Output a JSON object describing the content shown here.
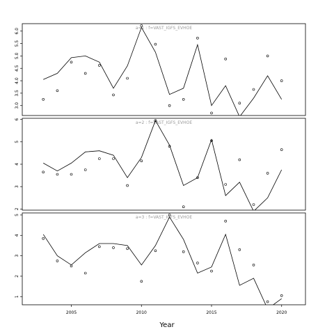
{
  "chart_data": {
    "type": "line",
    "xlabel": "Year",
    "xlim": [
      2001.5,
      2021.7
    ],
    "x_ticks": [
      2005,
      2010,
      2015,
      2020
    ],
    "x": [
      2003,
      2004,
      2005,
      2006,
      2007,
      2008,
      2009,
      2010,
      2011,
      2012,
      2013,
      2014,
      2015,
      2016,
      2017,
      2018,
      2019,
      2020
    ],
    "panels": [
      {
        "title": "a=1 : f=VAST_IGFS_EVHOE",
        "ylim": [
          2.6,
          6.3
        ],
        "y_ticks": [
          "3.0",
          "3.5",
          "4.0",
          "4.5",
          "5.0",
          "5.5",
          "6.0"
        ],
        "line": [
          4.05,
          4.3,
          4.93,
          5.0,
          4.75,
          3.7,
          4.6,
          6.15,
          5.15,
          3.45,
          3.7,
          5.45,
          3.0,
          3.8,
          2.55,
          3.3,
          4.2,
          3.25
        ],
        "points": [
          3.25,
          3.6,
          4.75,
          4.3,
          4.62,
          3.43,
          4.1,
          6.22,
          5.47,
          3.0,
          3.25,
          5.72,
          2.7,
          4.88,
          3.1,
          3.65,
          5.0,
          4.0
        ]
      },
      {
        "title": "a=2 : f=VAST_IGFS_EVHOE",
        "ylim": [
          1.95,
          6.05
        ],
        "y_ticks": [
          "2",
          "3",
          "4",
          "5",
          "6"
        ],
        "line": [
          4.05,
          3.7,
          4.05,
          4.55,
          4.6,
          4.4,
          3.4,
          4.3,
          5.95,
          4.85,
          3.05,
          3.4,
          5.1,
          2.6,
          3.2,
          1.9,
          2.5,
          3.75
        ],
        "points": [
          3.65,
          3.55,
          3.55,
          3.75,
          4.25,
          4.25,
          3.05,
          4.15,
          5.95,
          4.8,
          2.1,
          3.4,
          5.05,
          3.1,
          4.2,
          2.2,
          3.6,
          4.65
        ]
      },
      {
        "title": "a=3 : f=VAST_IGFS_EVHOE",
        "ylim": [
          0.6,
          5.1
        ],
        "y_ticks": [
          "1",
          "2",
          "3",
          "4",
          "5"
        ],
        "line": [
          4.05,
          3.0,
          2.55,
          3.15,
          3.6,
          3.6,
          3.5,
          2.55,
          3.5,
          4.9,
          3.8,
          2.15,
          2.45,
          4.05,
          1.55,
          1.9,
          0.4,
          0.9
        ],
        "points": [
          3.85,
          2.75,
          2.5,
          2.15,
          3.45,
          3.4,
          3.35,
          1.75,
          3.25,
          5.0,
          3.2,
          2.65,
          2.25,
          4.7,
          3.3,
          2.55,
          0.75,
          1.05
        ]
      }
    ]
  }
}
